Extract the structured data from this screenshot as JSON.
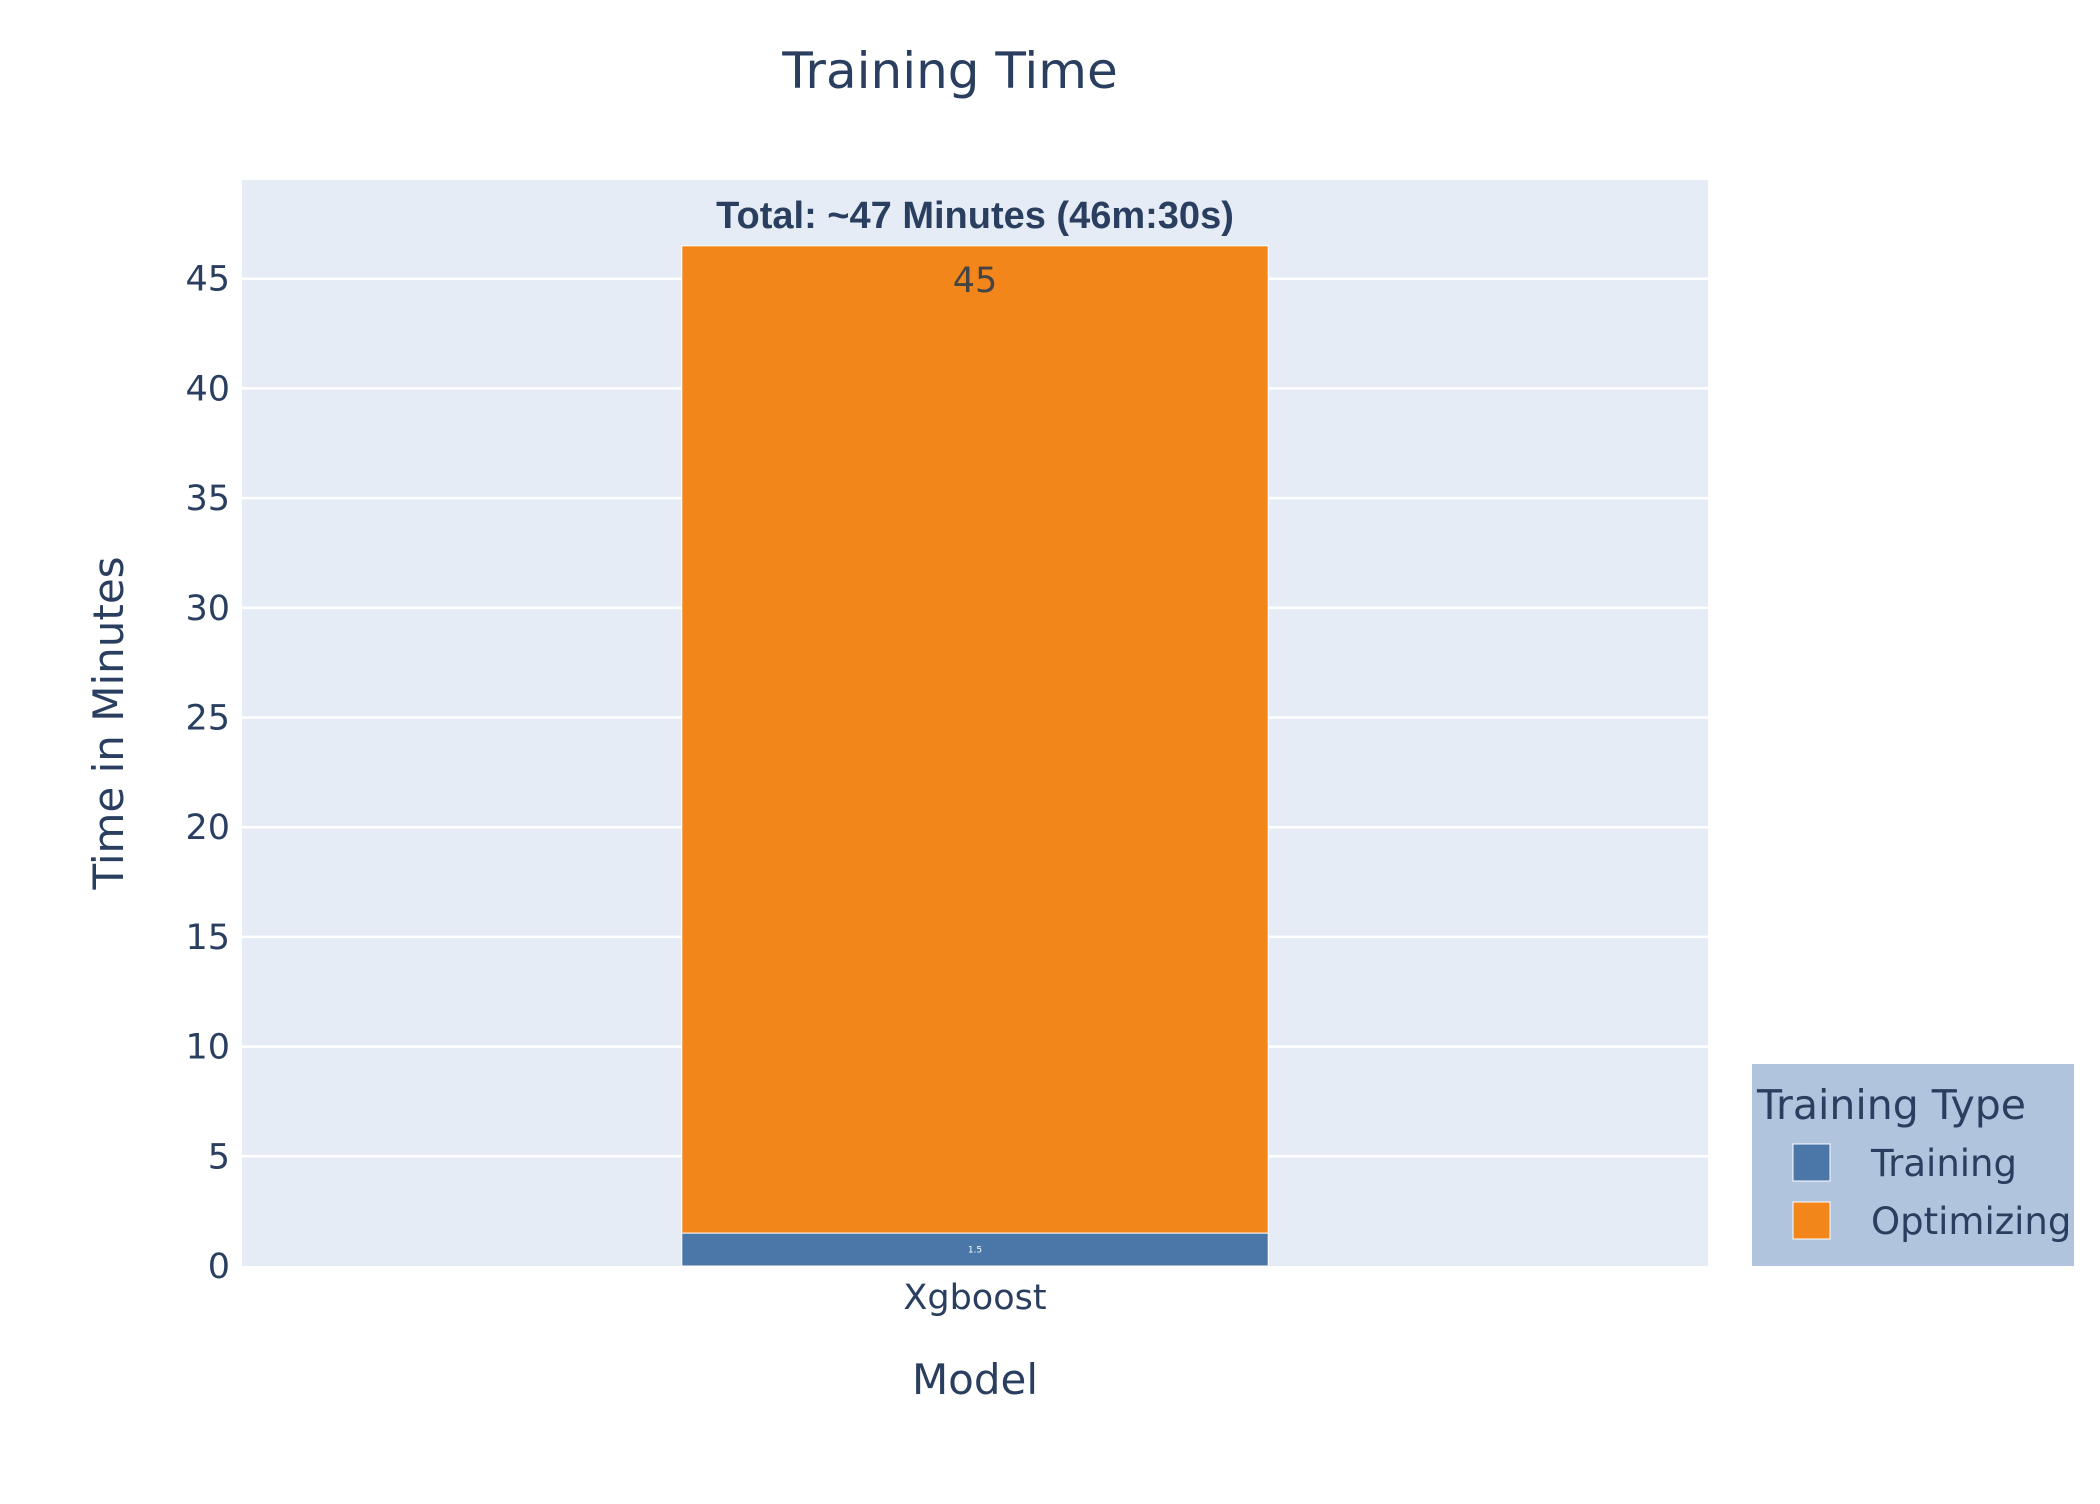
{
  "chart_data": {
    "type": "bar",
    "barmode": "stack",
    "title": "Training Time",
    "xlabel": "Model",
    "ylabel": "Time in Minutes",
    "categories": [
      "Xgboost"
    ],
    "series": [
      {
        "name": "Training",
        "values": [
          1.5
        ],
        "color": "#4a76a8",
        "labels": [
          "1.5"
        ]
      },
      {
        "name": "Optimizing",
        "values": [
          45
        ],
        "color": "#f3861b",
        "labels": [
          "45"
        ]
      }
    ],
    "ylim": [
      0,
      49.5
    ],
    "yticks": [
      0,
      5,
      10,
      15,
      20,
      25,
      30,
      35,
      40,
      45
    ],
    "grid": true,
    "legend": {
      "title": "Training Type",
      "placement": "bottom-right",
      "background": "#b0c4de"
    },
    "annotations": [
      {
        "text": "Total: ~47 Minutes (46m:30s)",
        "x": "Xgboost",
        "y": 46.5
      }
    ],
    "colors": {
      "plot_background": "#e5ecf6",
      "gridline": "#ffffff",
      "text": "#2a3f5f"
    }
  }
}
